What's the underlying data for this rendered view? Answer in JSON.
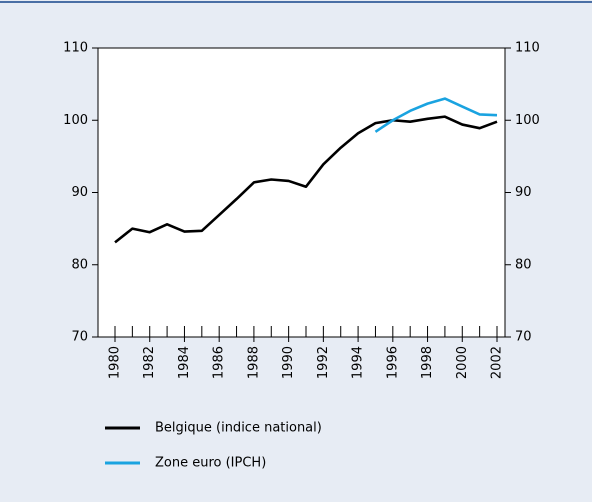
{
  "chart_data": {
    "type": "line",
    "x": [
      1980,
      1981,
      1982,
      1983,
      1984,
      1985,
      1986,
      1987,
      1988,
      1989,
      1990,
      1991,
      1992,
      1993,
      1994,
      1995,
      1996,
      1997,
      1998,
      1999,
      2000,
      2001,
      2002
    ],
    "series": [
      {
        "name": "Belgique (indice national)",
        "color": "#000000",
        "values": [
          83.1,
          85.0,
          84.5,
          85.6,
          84.6,
          84.7,
          86.9,
          89.1,
          91.4,
          91.8,
          91.6,
          90.8,
          93.9,
          96.2,
          98.2,
          99.6,
          100.0,
          99.8,
          100.2,
          100.5,
          99.4,
          98.9,
          99.8
        ]
      },
      {
        "name": "Zone euro (IPCH)",
        "color": "#1aa3e0",
        "values": [
          null,
          null,
          null,
          null,
          null,
          null,
          null,
          null,
          null,
          null,
          null,
          null,
          null,
          null,
          null,
          98.4,
          100.0,
          101.3,
          102.3,
          103.0,
          101.9,
          100.8,
          100.7
        ]
      }
    ],
    "xlim": [
      1980,
      2002
    ],
    "xticks": [
      1980,
      1982,
      1984,
      1986,
      1988,
      1990,
      1992,
      1994,
      1996,
      1998,
      2000,
      2002
    ],
    "ylim": [
      70,
      110
    ],
    "yticks": [
      70,
      80,
      90,
      100,
      110
    ],
    "y2lim": [
      70,
      110
    ],
    "y2ticks": [
      70,
      80,
      90,
      100,
      110
    ]
  }
}
